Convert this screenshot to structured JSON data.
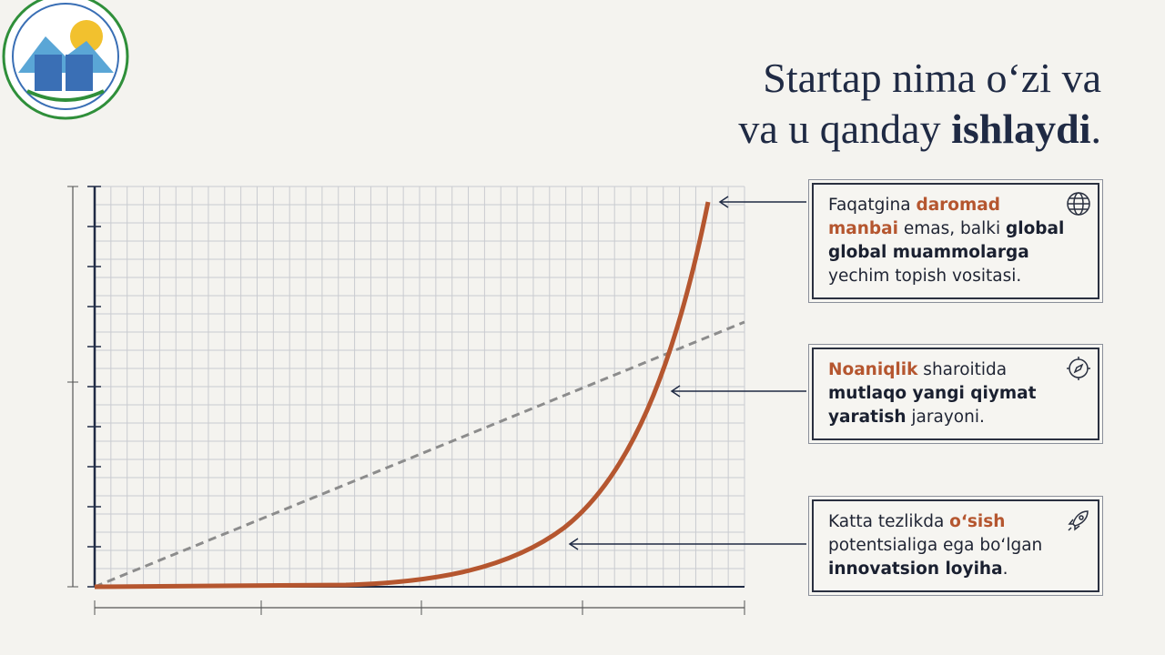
{
  "title": {
    "line1": "Startap nima o‘zi va",
    "line2": [
      "va u qanday ",
      "ishlaydi",
      "."
    ]
  },
  "callouts": [
    {
      "lines": [
        [
          "Faqatgina ",
          "daromad"
        ],
        [
          "manbai",
          " emas, balki ",
          "global"
        ],
        [
          "global muammolarga"
        ],
        [
          "yechim topish vositasi."
        ]
      ]
    },
    {
      "lines": [
        [
          "Noaniqlik",
          " sharoitida"
        ],
        [
          "mutlaqo yangi qiymat"
        ],
        [
          "yaratish",
          " jarayoni."
        ]
      ]
    },
    {
      "lines": [
        [
          "Katta tezlikda ",
          "o‘sish"
        ],
        [
          "potentsialiga ega bo‘lgan"
        ],
        [
          "innovatsion loyiha",
          "."
        ]
      ]
    }
  ]
}
